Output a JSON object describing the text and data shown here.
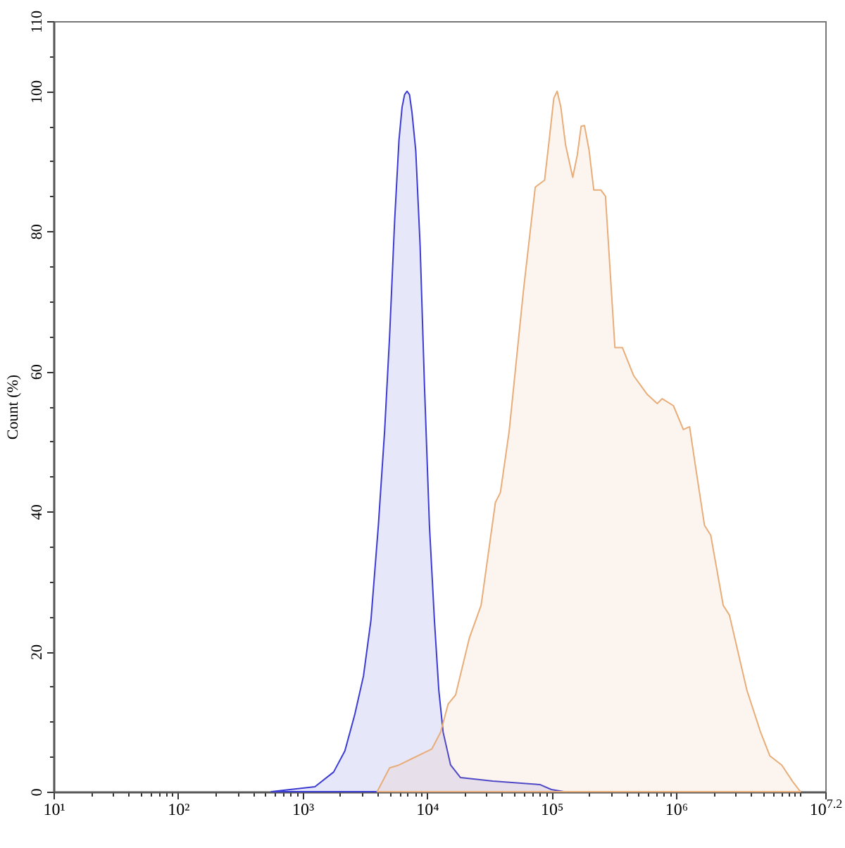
{
  "chart_data": {
    "type": "area",
    "ylabel": "Count (%)",
    "log": "x",
    "xlim": [
      10,
      15848932
    ],
    "xticks": [
      {
        "value": 10,
        "label": "10¹"
      },
      {
        "value": 20,
        "label": null
      },
      {
        "value": 30,
        "label": null
      },
      {
        "value": 40,
        "label": null
      },
      {
        "value": 50,
        "label": null
      },
      {
        "value": 60,
        "label": null
      },
      {
        "value": 70,
        "label": null
      },
      {
        "value": 80,
        "label": null
      },
      {
        "value": 90,
        "label": null
      },
      {
        "value": 100,
        "label": "10²"
      },
      {
        "value": 200,
        "label": null
      },
      {
        "value": 300,
        "label": null
      },
      {
        "value": 400,
        "label": null
      },
      {
        "value": 500,
        "label": null
      },
      {
        "value": 600,
        "label": null
      },
      {
        "value": 700,
        "label": null
      },
      {
        "value": 800,
        "label": null
      },
      {
        "value": 900,
        "label": null
      },
      {
        "value": 1000,
        "label": "10³"
      },
      {
        "value": 2000,
        "label": null
      },
      {
        "value": 3000,
        "label": null
      },
      {
        "value": 4000,
        "label": null
      },
      {
        "value": 5000,
        "label": null
      },
      {
        "value": 6000,
        "label": null
      },
      {
        "value": 7000,
        "label": null
      },
      {
        "value": 8000,
        "label": null
      },
      {
        "value": 9000,
        "label": null
      },
      {
        "value": 10000,
        "label": "10⁴"
      },
      {
        "value": 20000,
        "label": null
      },
      {
        "value": 30000,
        "label": null
      },
      {
        "value": 40000,
        "label": null
      },
      {
        "value": 50000,
        "label": null
      },
      {
        "value": 60000,
        "label": null
      },
      {
        "value": 70000,
        "label": null
      },
      {
        "value": 80000,
        "label": null
      },
      {
        "value": 90000,
        "label": null
      },
      {
        "value": 100000,
        "label": "10⁵"
      },
      {
        "value": 200000,
        "label": null
      },
      {
        "value": 300000,
        "label": null
      },
      {
        "value": 400000,
        "label": null
      },
      {
        "value": 500000,
        "label": null
      },
      {
        "value": 600000,
        "label": null
      },
      {
        "value": 700000,
        "label": null
      },
      {
        "value": 800000,
        "label": null
      },
      {
        "value": 900000,
        "label": null
      },
      {
        "value": 1000000,
        "label": "10⁶"
      },
      {
        "value": 2000000,
        "label": null
      },
      {
        "value": 3000000,
        "label": null
      },
      {
        "value": 4000000,
        "label": null
      },
      {
        "value": 5000000,
        "label": null
      },
      {
        "value": 6000000,
        "label": null
      },
      {
        "value": 7000000,
        "label": null
      },
      {
        "value": 8000000,
        "label": null
      },
      {
        "value": 9000000,
        "label": null
      },
      {
        "value": 10000000,
        "label": null
      },
      {
        "value": 15848932,
        "label": "10$^{7.2}$"
      }
    ],
    "ylim": [
      0,
      110
    ],
    "yticks": [
      0,
      {
        "value": 5,
        "label": null
      },
      {
        "value": 10,
        "label": null
      },
      {
        "value": 15,
        "label": null
      },
      20,
      {
        "value": 25,
        "label": null
      },
      {
        "value": 30,
        "label": null
      },
      {
        "value": 35,
        "label": null
      },
      40,
      {
        "value": 45,
        "label": null
      },
      {
        "value": 50,
        "label": null
      },
      {
        "value": 55,
        "label": null
      },
      60,
      {
        "value": 65,
        "label": null
      },
      {
        "value": 70,
        "label": null
      },
      {
        "value": 75,
        "label": null
      },
      80,
      {
        "value": 85,
        "label": null
      },
      {
        "value": 90,
        "label": null
      },
      {
        "value": 95,
        "label": null
      },
      100,
      {
        "value": 105,
        "label": null
      },
      110
    ],
    "series": [
      {
        "color": "#3c3cd2",
        "x": [
          562,
          1260,
          1780,
          2190,
          2630,
          3090,
          3550,
          4070,
          4570,
          5010,
          5500,
          5960,
          6310,
          6610,
          6920,
          7240,
          7580,
          8130,
          8810,
          9550,
          10470,
          11480,
          12450,
          13490,
          15490,
          18620,
          33880,
          81280,
          100000,
          125900
        ],
        "values": [
          0,
          0.7,
          2.8,
          5.8,
          11,
          16.5,
          24.5,
          38,
          51.5,
          65,
          81.5,
          93,
          97.7,
          99.5,
          100,
          99.5,
          97,
          91.5,
          78,
          58,
          38,
          24.5,
          14.5,
          8.5,
          3.8,
          2,
          1.5,
          1,
          0.3,
          0
        ]
      },
      {
        "color": "#e8ad78",
        "x": [
          3980,
          5010,
          5960,
          7760,
          10960,
          12880,
          14790,
          16980,
          21880,
          27230,
          35480,
          38900,
          45710,
          59570,
          74130,
          88100,
          95900,
          104500,
          111200,
          119100,
          130000,
          148300,
          161400,
          173300,
          184100,
          200600,
          218800,
          249200,
          271800,
          323600,
          371500,
          457100,
          588800,
          707900,
          776200,
          955000,
          1148000,
          1288000,
          1413000,
          1698000,
          1905000,
          2399000,
          2692000,
          3715000,
          4786000,
          5689000,
          7079000,
          8710000,
          10000000
        ],
        "values": [
          0,
          3.4,
          3.8,
          4.8,
          6.1,
          8.5,
          12.5,
          13.8,
          21.9,
          26.6,
          41.3,
          42.7,
          51.4,
          71.5,
          86.3,
          87.3,
          93,
          99,
          100,
          97.7,
          92.3,
          87.7,
          90.9,
          95,
          95.1,
          91.6,
          85.9,
          85.9,
          85,
          63.4,
          63.4,
          59.4,
          56.7,
          55.4,
          56.1,
          55.1,
          51.7,
          52.1,
          47.3,
          38,
          36.6,
          26.6,
          25.2,
          14.5,
          8.5,
          5.1,
          3.8,
          1.4,
          0
        ]
      }
    ]
  }
}
